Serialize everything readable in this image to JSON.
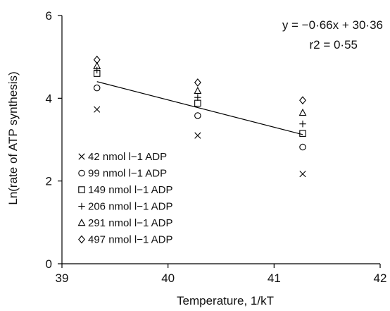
{
  "chart_data": {
    "type": "scatter",
    "xlabel": "Temperature, 1/kT",
    "ylabel": "Ln(rate of ATP synthesis)",
    "xlim": [
      39,
      42
    ],
    "ylim": [
      0,
      6
    ],
    "xticks": [
      39,
      40,
      41,
      42
    ],
    "yticks": [
      0,
      2,
      4,
      6
    ],
    "grid": false,
    "legend_position": "bottom-left",
    "annotation": {
      "equation": "y = −0·66x + 30·36",
      "r2": "r2 = 0·55"
    },
    "regression": {
      "slope": -0.66,
      "intercept": 30.36
    },
    "series": [
      {
        "name": "42 nmol l−1 ADP",
        "marker": "x",
        "x": [
          39.33,
          40.28,
          41.27
        ],
        "y": [
          3.73,
          3.1,
          2.17
        ]
      },
      {
        "name": "99 nmol l−1 ADP",
        "marker": "circle",
        "x": [
          39.33,
          40.28,
          41.27
        ],
        "y": [
          4.25,
          3.58,
          2.82
        ]
      },
      {
        "name": "149 nmol l−1 ADP",
        "marker": "square",
        "x": [
          39.33,
          40.28,
          41.27
        ],
        "y": [
          4.6,
          3.88,
          3.15
        ]
      },
      {
        "name": "206 nmol l−1 ADP",
        "marker": "plus",
        "x": [
          39.33,
          40.28,
          41.27
        ],
        "y": [
          4.68,
          4.02,
          3.38
        ]
      },
      {
        "name": "291 nmol l−1 ADP",
        "marker": "triangle",
        "x": [
          39.33,
          40.28,
          41.27
        ],
        "y": [
          4.78,
          4.18,
          3.65
        ]
      },
      {
        "name": "497 nmol l−1 ADP",
        "marker": "diamond",
        "x": [
          39.33,
          40.28,
          41.27
        ],
        "y": [
          4.93,
          4.38,
          3.95
        ]
      }
    ]
  }
}
